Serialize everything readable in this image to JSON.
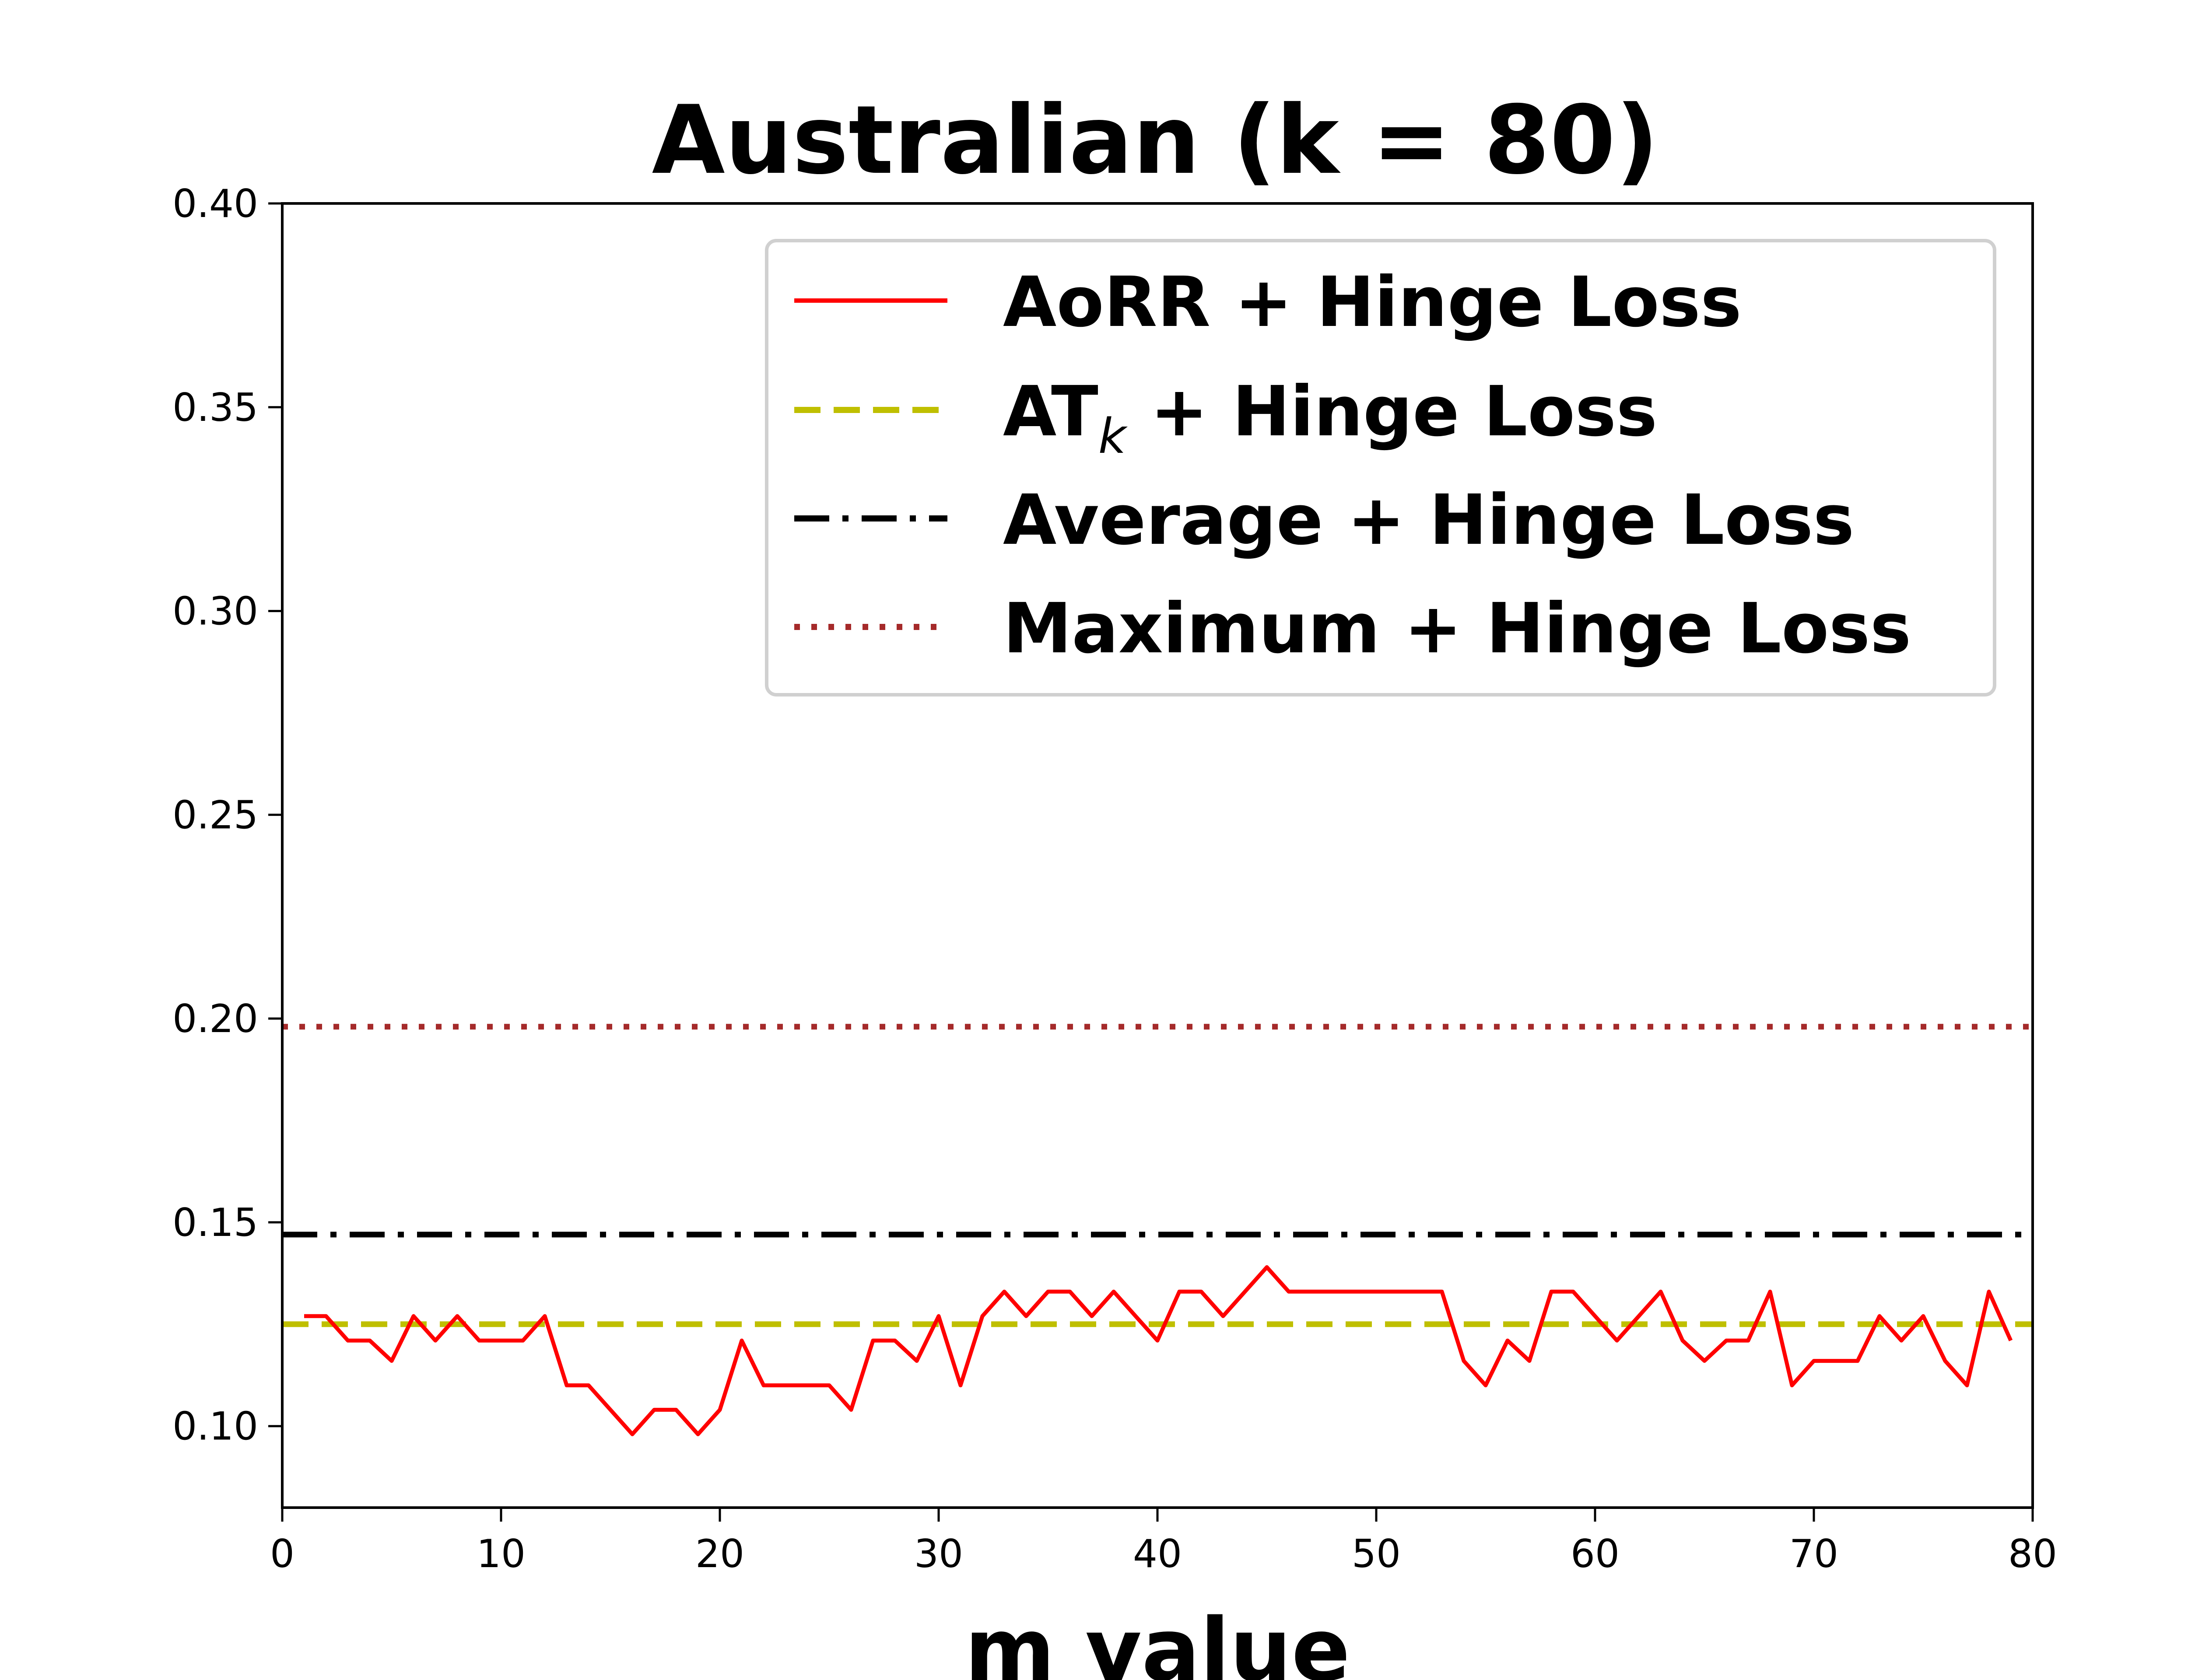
{
  "chart_data": {
    "type": "line",
    "title": "Australian (k = 80)",
    "xlabel": "m value",
    "ylabel": "",
    "xlim": [
      0,
      80
    ],
    "ylim": [
      0.08,
      0.4
    ],
    "xticks": [
      0,
      10,
      20,
      30,
      40,
      50,
      60,
      70,
      80
    ],
    "xtick_labels": [
      "0",
      "10",
      "20",
      "30",
      "40",
      "50",
      "60",
      "70",
      "80"
    ],
    "yticks": [
      0.1,
      0.15,
      0.2,
      0.25,
      0.3,
      0.35,
      0.4
    ],
    "ytick_labels": [
      "0.10",
      "0.15",
      "0.20",
      "0.25",
      "0.30",
      "0.35",
      "0.40"
    ],
    "grid": false,
    "legend_position": "top-right",
    "series": [
      {
        "name": "AoRR + Hinge Loss",
        "color": "#ff0000",
        "style": "solid",
        "x": [
          1,
          2,
          3,
          4,
          5,
          6,
          7,
          8,
          9,
          10,
          11,
          12,
          13,
          14,
          15,
          16,
          17,
          18,
          19,
          20,
          21,
          22,
          23,
          24,
          25,
          26,
          27,
          28,
          29,
          30,
          31,
          32,
          33,
          34,
          35,
          36,
          37,
          38,
          39,
          40,
          41,
          42,
          43,
          44,
          45,
          46,
          47,
          48,
          49,
          50,
          51,
          52,
          53,
          54,
          55,
          56,
          57,
          58,
          59,
          60,
          61,
          62,
          63,
          64,
          65,
          66,
          67,
          68,
          69,
          70,
          71,
          72,
          73,
          74,
          75,
          76,
          77,
          78,
          79
        ],
        "values": [
          0.127,
          0.127,
          0.121,
          0.121,
          0.116,
          0.127,
          0.121,
          0.127,
          0.121,
          0.121,
          0.121,
          0.127,
          0.11,
          0.11,
          0.104,
          0.098,
          0.104,
          0.104,
          0.098,
          0.104,
          0.121,
          0.11,
          0.11,
          0.11,
          0.11,
          0.104,
          0.121,
          0.121,
          0.116,
          0.127,
          0.11,
          0.127,
          0.133,
          0.127,
          0.133,
          0.133,
          0.127,
          0.133,
          0.127,
          0.121,
          0.133,
          0.133,
          0.127,
          0.133,
          0.139,
          0.133,
          0.133,
          0.133,
          0.133,
          0.133,
          0.133,
          0.133,
          0.133,
          0.116,
          0.11,
          0.121,
          0.116,
          0.133,
          0.133,
          0.127,
          0.121,
          0.127,
          0.133,
          0.121,
          0.116,
          0.121,
          0.121,
          0.133,
          0.11,
          0.116,
          0.116,
          0.116,
          0.127,
          0.121,
          0.127,
          0.116,
          0.11,
          0.133,
          0.121
        ]
      },
      {
        "name": "AT_k + Hinge Loss",
        "legend_main": "AT",
        "legend_sub": "k",
        "legend_rest": " + Hinge Loss",
        "color": "#bfbf00",
        "style": "dashed",
        "x": [
          0,
          80
        ],
        "values": [
          0.125,
          0.125
        ]
      },
      {
        "name": "Average + Hinge Loss",
        "color": "#000000",
        "style": "dashdot",
        "x": [
          0,
          80
        ],
        "values": [
          0.147,
          0.147
        ]
      },
      {
        "name": "Maximum + Hinge Loss",
        "color": "#a52a2a",
        "style": "dotted",
        "x": [
          0,
          80
        ],
        "values": [
          0.198,
          0.198
        ]
      }
    ]
  }
}
